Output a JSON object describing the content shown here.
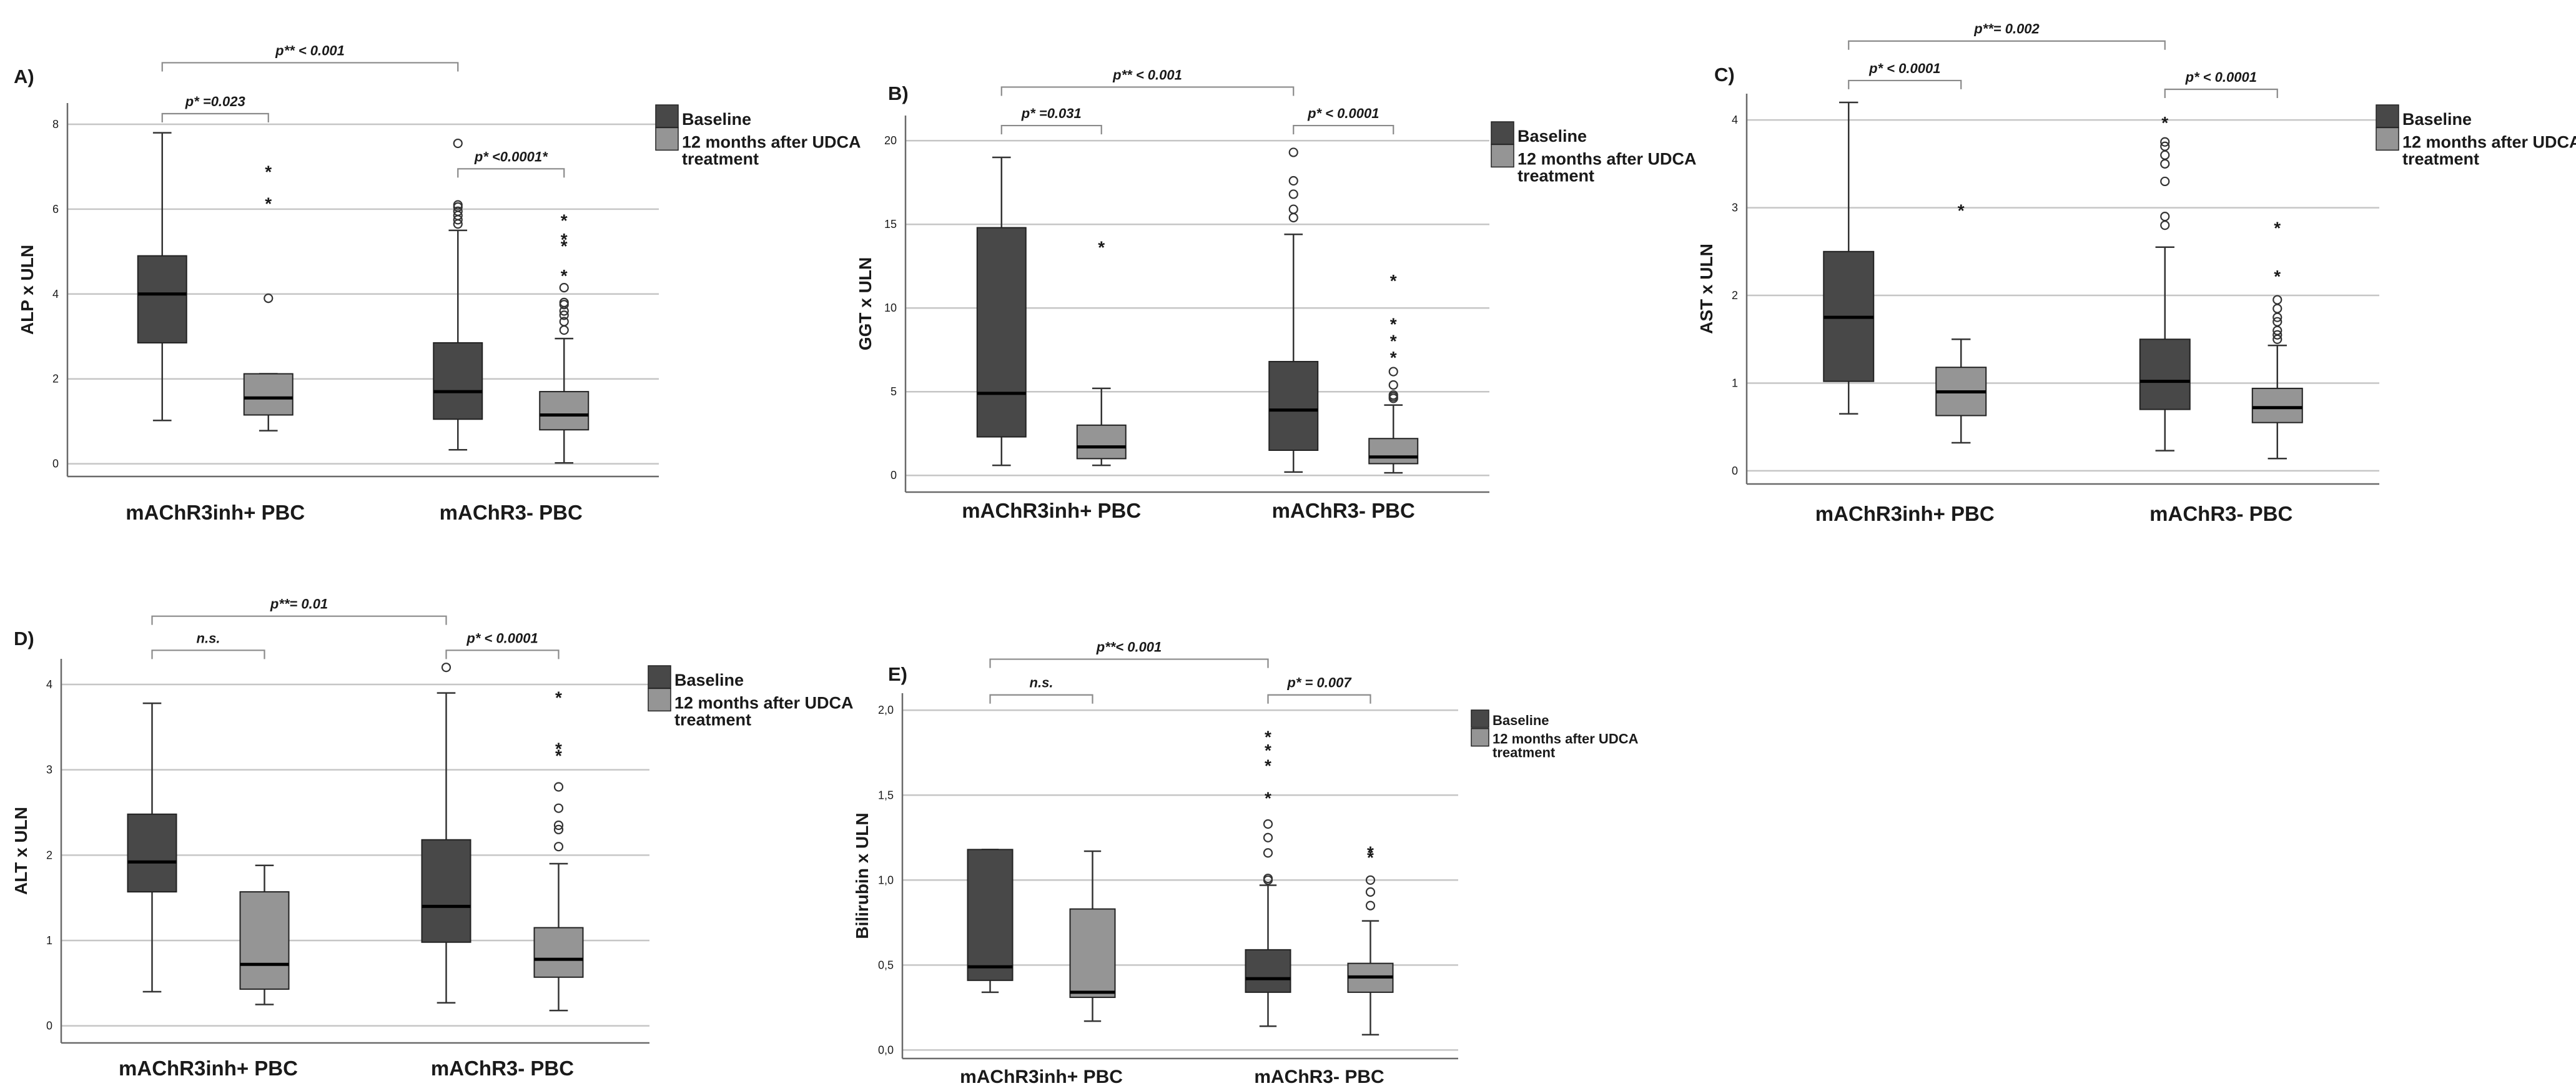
{
  "figure_name": "mAChR3 PBC liver test boxplots",
  "colors": {
    "baseline": "#484848",
    "after": "#959595",
    "gridline": "#c6c6c6",
    "axis": "#6a6a6a",
    "bracket": "#8a8a8a"
  },
  "chart_data": [
    {
      "panel": "A)",
      "type": "boxplot",
      "ylabel": "ALP x ULN",
      "ylim": [
        -0.3,
        8.5
      ],
      "ticks": [
        "0",
        "2",
        "4",
        "6",
        "8"
      ],
      "tick_values": [
        0,
        2,
        4,
        6,
        8
      ],
      "categories": [
        "mAChR3inh+ PBC",
        "mAChR3- PBC"
      ],
      "legend": [
        "Baseline",
        "12 months after UDCA",
        "treatment"
      ],
      "series": [
        {
          "name": "Baseline",
          "boxes": [
            {
              "min": 1.02,
              "q1": 2.85,
              "median": 4.0,
              "q3": 4.9,
              "max": 7.8,
              "circles": [],
              "stars": []
            },
            {
              "min": 0.33,
              "q1": 1.05,
              "median": 1.7,
              "q3": 2.85,
              "max": 5.5,
              "circles": [
                5.65,
                5.75,
                5.85,
                5.95,
                6.05,
                6.1,
                7.55
              ],
              "stars": []
            }
          ]
        },
        {
          "name": "12 months after UDCA treatment",
          "boxes": [
            {
              "min": 0.78,
              "q1": 1.15,
              "median": 1.55,
              "q3": 2.12,
              "max": 2.12,
              "circles": [
                3.9
              ],
              "stars": [
                6.2,
                6.95
              ]
            },
            {
              "min": 0.02,
              "q1": 0.8,
              "median": 1.15,
              "q3": 1.7,
              "max": 2.95,
              "circles": [
                3.15,
                3.35,
                3.5,
                3.6,
                3.75,
                3.8,
                4.15
              ],
              "stars": [
                4.5,
                5.2,
                5.35,
                5.8
              ]
            }
          ]
        }
      ],
      "brackets": [
        {
          "label": "p* =0.023",
          "from": [
            0,
            0
          ],
          "to": [
            0,
            1
          ],
          "level": 8.25
        },
        {
          "label": "p* <0.0001*",
          "from": [
            1,
            0
          ],
          "to": [
            1,
            1
          ],
          "level": 6.95
        },
        {
          "label": "p** < 0.001",
          "from": [
            0,
            0
          ],
          "to": [
            1,
            0
          ],
          "level": 9.45
        }
      ]
    },
    {
      "panel": "B)",
      "type": "boxplot",
      "ylabel": "GGT x ULN",
      "ylim": [
        -1.0,
        21.5
      ],
      "ticks": [
        "0",
        "5",
        "10",
        "15",
        "20"
      ],
      "tick_values": [
        0,
        5,
        10,
        15,
        20
      ],
      "categories": [
        "mAChR3inh+ PBC",
        "mAChR3- PBC"
      ],
      "legend": [
        "Baseline",
        "12 months after UDCA",
        "treatment"
      ],
      "series": [
        {
          "name": "Baseline",
          "boxes": [
            {
              "min": 0.6,
              "q1": 2.3,
              "median": 4.9,
              "q3": 14.8,
              "max": 19.0,
              "circles": [],
              "stars": []
            },
            {
              "min": 0.2,
              "q1": 1.5,
              "median": 3.9,
              "q3": 6.8,
              "max": 14.4,
              "circles": [
                15.4,
                15.9,
                16.8,
                17.6,
                19.3
              ],
              "stars": []
            }
          ]
        },
        {
          "name": "12 months after UDCA treatment",
          "boxes": [
            {
              "min": 0.6,
              "q1": 1.0,
              "median": 1.7,
              "q3": 3.0,
              "max": 5.2,
              "circles": [],
              "stars": [
                13.8
              ]
            },
            {
              "min": 0.15,
              "q1": 0.7,
              "median": 1.1,
              "q3": 2.2,
              "max": 4.2,
              "circles": [
                4.6,
                4.7,
                4.8,
                5.4,
                6.2
              ],
              "stars": [
                7.2,
                8.2,
                9.2,
                11.8
              ]
            }
          ]
        }
      ],
      "brackets": [
        {
          "label": "p* =0.031",
          "from": [
            0,
            0
          ],
          "to": [
            0,
            1
          ],
          "level": 20.9
        },
        {
          "label": "p* < 0.0001",
          "from": [
            1,
            0
          ],
          "to": [
            1,
            1
          ],
          "level": 20.9
        },
        {
          "label": "p** < 0.001",
          "from": [
            0,
            0
          ],
          "to": [
            1,
            0
          ],
          "level": 23.2
        }
      ]
    },
    {
      "panel": "C)",
      "type": "boxplot",
      "ylabel": "AST x ULN",
      "ylim": [
        -0.15,
        4.3
      ],
      "ticks": [
        "0",
        "1",
        "2",
        "3",
        "4"
      ],
      "tick_values": [
        0,
        1,
        2,
        3,
        4
      ],
      "categories": [
        "mAChR3inh+ PBC",
        "mAChR3- PBC"
      ],
      "legend": [
        "Baseline",
        "12 months after UDCA",
        "treatment"
      ],
      "series": [
        {
          "name": "Baseline",
          "boxes": [
            {
              "min": 0.65,
              "q1": 1.02,
              "median": 1.75,
              "q3": 2.5,
              "max": 4.2,
              "circles": [],
              "stars": []
            },
            {
              "min": 0.23,
              "q1": 0.7,
              "median": 1.02,
              "q3": 1.5,
              "max": 2.55,
              "circles": [
                2.8,
                2.9,
                3.3,
                3.5,
                3.6,
                3.7,
                3.75
              ],
              "stars": [
                4.0
              ]
            }
          ]
        },
        {
          "name": "12 months after UDCA treatment",
          "boxes": [
            {
              "min": 0.32,
              "q1": 0.63,
              "median": 0.9,
              "q3": 1.18,
              "max": 1.5,
              "circles": [],
              "stars": [
                3.0
              ]
            },
            {
              "min": 0.14,
              "q1": 0.55,
              "median": 0.72,
              "q3": 0.94,
              "max": 1.43,
              "circles": [
                1.5,
                1.55,
                1.6,
                1.7,
                1.75,
                1.85,
                1.95
              ],
              "stars": [
                2.25,
                2.8
              ]
            }
          ]
        }
      ],
      "brackets": [
        {
          "label": "p* < 0.0001",
          "from": [
            0,
            0
          ],
          "to": [
            0,
            1
          ],
          "level": 4.45
        },
        {
          "label": "p* < 0.0001",
          "from": [
            1,
            0
          ],
          "to": [
            1,
            1
          ],
          "level": 4.35
        },
        {
          "label": "p**= 0.002",
          "from": [
            0,
            0
          ],
          "to": [
            1,
            0
          ],
          "level": 4.9
        }
      ]
    },
    {
      "panel": "D)",
      "type": "boxplot",
      "ylabel": "ALT x ULN",
      "ylim": [
        -0.2,
        4.3
      ],
      "ticks": [
        "0",
        "1",
        "2",
        "3",
        "4"
      ],
      "tick_values": [
        0,
        1,
        2,
        3,
        4
      ],
      "categories": [
        "mAChR3inh+ PBC",
        "mAChR3- PBC"
      ],
      "legend": [
        "Baseline",
        "12 months after UDCA",
        "treatment"
      ],
      "series": [
        {
          "name": "Baseline",
          "boxes": [
            {
              "min": 0.4,
              "q1": 1.57,
              "median": 1.92,
              "q3": 2.48,
              "max": 3.78,
              "circles": [],
              "stars": []
            },
            {
              "min": 0.27,
              "q1": 0.98,
              "median": 1.4,
              "q3": 2.18,
              "max": 3.9,
              "circles": [
                4.2
              ],
              "stars": []
            }
          ]
        },
        {
          "name": "12 months after UDCA treatment",
          "boxes": [
            {
              "min": 0.25,
              "q1": 0.43,
              "median": 0.72,
              "q3": 1.57,
              "max": 1.88,
              "circles": [],
              "stars": []
            },
            {
              "min": 0.18,
              "q1": 0.57,
              "median": 0.78,
              "q3": 1.15,
              "max": 1.9,
              "circles": [
                2.1,
                2.3,
                2.35,
                2.55,
                2.8
              ],
              "stars": [
                3.2,
                3.28,
                3.88
              ]
            }
          ]
        }
      ],
      "brackets": [
        {
          "label": "n.s.",
          "from": [
            0,
            0
          ],
          "to": [
            0,
            1
          ],
          "level": 4.4
        },
        {
          "label": "p* < 0.0001",
          "from": [
            1,
            0
          ],
          "to": [
            1,
            1
          ],
          "level": 4.4
        },
        {
          "label": "p**= 0.01",
          "from": [
            0,
            0
          ],
          "to": [
            1,
            0
          ],
          "level": 4.8
        }
      ]
    },
    {
      "panel": "E)",
      "type": "boxplot",
      "ylabel": "Bilirubin x ULN",
      "ylim": [
        -0.05,
        2.1
      ],
      "ticks": [
        "0,0",
        "0,5",
        "1,0",
        "1,5",
        "2,0"
      ],
      "tick_values": [
        0,
        0.5,
        1,
        1.5,
        2
      ],
      "categories": [
        "mAChR3inh+ PBC",
        "mAChR3- PBC"
      ],
      "legend": [
        "Baseline",
        "12 months after UDCA",
        "treatment"
      ],
      "series": [
        {
          "name": "Baseline",
          "boxes": [
            {
              "min": 0.34,
              "q1": 0.41,
              "median": 0.49,
              "q3": 1.18,
              "max": 1.18,
              "circles": [],
              "stars": []
            },
            {
              "min": 0.14,
              "q1": 0.34,
              "median": 0.42,
              "q3": 0.59,
              "max": 0.97,
              "circles": [
                1.0,
                1.01,
                1.16,
                1.25,
                1.33
              ],
              "stars": [
                1.5,
                1.69,
                1.78,
                1.86
              ]
            }
          ]
        },
        {
          "name": "12 months after UDCA treatment",
          "boxes": [
            {
              "min": 0.17,
              "q1": 0.31,
              "median": 0.34,
              "q3": 0.83,
              "max": 1.17,
              "circles": [],
              "stars": []
            },
            {
              "min": 0.09,
              "q1": 0.34,
              "median": 0.43,
              "q3": 0.51,
              "max": 0.76,
              "circles": [
                0.85,
                0.93,
                1.0
              ],
              "stars": [
                1.15,
                1.18
              ]
            }
          ]
        }
      ],
      "brackets": [
        {
          "label": "n.s.",
          "from": [
            0,
            0
          ],
          "to": [
            0,
            1
          ],
          "level": 2.09
        },
        {
          "label": "p* = 0.007",
          "from": [
            1,
            0
          ],
          "to": [
            1,
            1
          ],
          "level": 2.09
        },
        {
          "label": "p**< 0.001",
          "from": [
            0,
            0
          ],
          "to": [
            1,
            0
          ],
          "level": 2.3
        }
      ]
    }
  ]
}
